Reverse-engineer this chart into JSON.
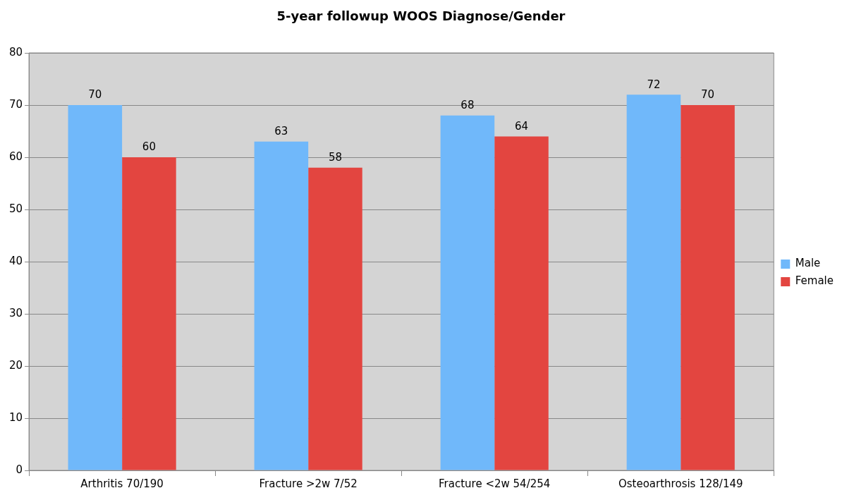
{
  "chart_data": {
    "type": "bar",
    "title": "5-year followup WOOS Diagnose/Gender",
    "categories": [
      "Arthritis 70/190",
      "Fracture >2w 7/52",
      "Fracture <2w 54/254",
      "Osteoarthrosis 128/149"
    ],
    "series": [
      {
        "name": "Male",
        "color": "#70b8fa",
        "values": [
          70,
          63,
          68,
          72
        ]
      },
      {
        "name": "Female",
        "color": "#e34540",
        "values": [
          60,
          58,
          64,
          70
        ]
      }
    ],
    "ylim": [
      0,
      80
    ],
    "yticks": [
      0,
      10,
      20,
      30,
      40,
      50,
      60,
      70,
      80
    ],
    "grid": "y",
    "legend": "right",
    "data_labels": true
  }
}
